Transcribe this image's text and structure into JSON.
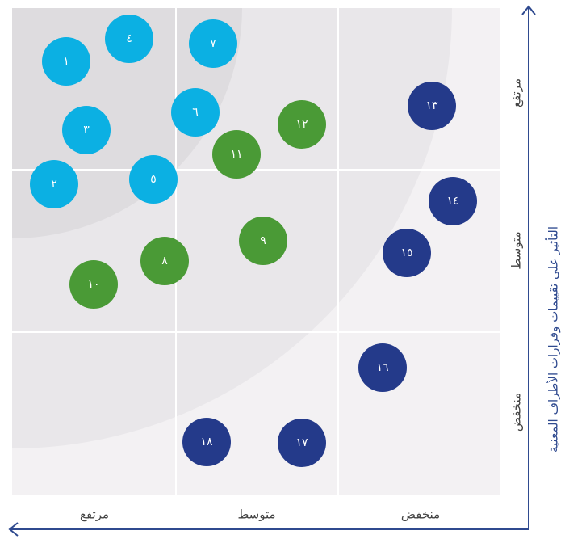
{
  "x_axis": {
    "labels": [
      "مرتفع",
      "متوسط",
      "منخفض"
    ]
  },
  "y_axis": {
    "title": "التأثير على تقييمات وقرارات الأطراف المعنية",
    "labels": [
      "مرتفع",
      "متوسط",
      "منخفض"
    ]
  },
  "nodes": [
    {
      "label": "١",
      "color": "#0bb0e3"
    },
    {
      "label": "٤",
      "color": "#0bb0e3"
    },
    {
      "label": "٧",
      "color": "#0bb0e3"
    },
    {
      "label": "٣",
      "color": "#0bb0e3"
    },
    {
      "label": "٦",
      "color": "#0bb0e3"
    },
    {
      "label": "٢",
      "color": "#0bb0e3"
    },
    {
      "label": "٥",
      "color": "#0bb0e3"
    },
    {
      "label": "١١",
      "color": "#4a9a36"
    },
    {
      "label": "١٢",
      "color": "#4a9a36"
    },
    {
      "label": "٩",
      "color": "#4a9a36"
    },
    {
      "label": "٨",
      "color": "#4a9a36"
    },
    {
      "label": "١٠",
      "color": "#4a9a36"
    },
    {
      "label": "١٣",
      "color": "#243a8a"
    },
    {
      "label": "١٤",
      "color": "#243a8a"
    },
    {
      "label": "١٥",
      "color": "#243a8a"
    },
    {
      "label": "١٦",
      "color": "#243a8a"
    },
    {
      "label": "١٨",
      "color": "#243a8a"
    },
    {
      "label": "١٧",
      "color": "#243a8a"
    }
  ]
}
